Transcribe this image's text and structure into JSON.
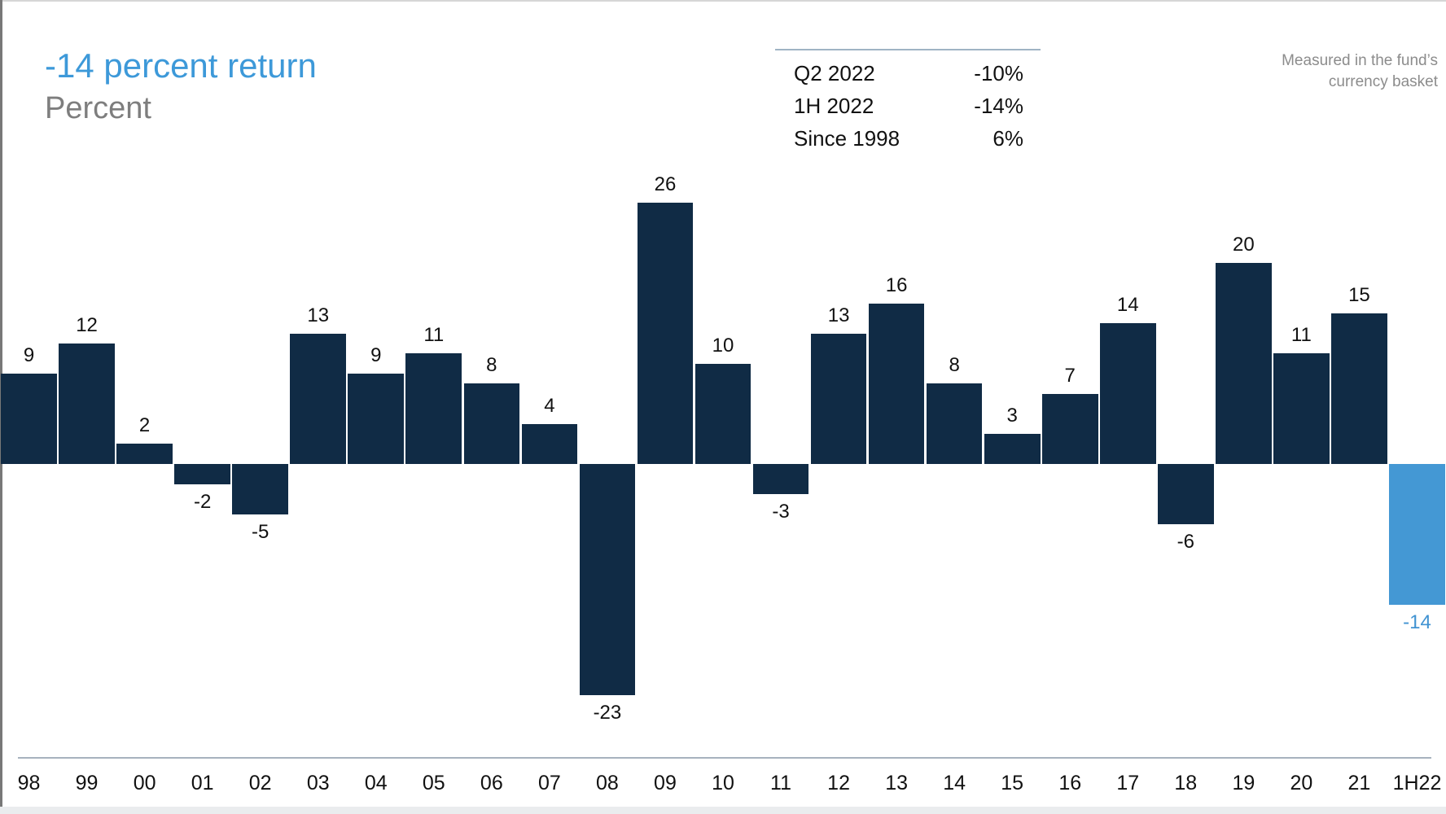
{
  "header": {
    "title": "-14 percent return",
    "subtitle": "Percent",
    "summary": {
      "rows": [
        {
          "label": "Q2 2022",
          "value": "-10%"
        },
        {
          "label": "1H 2022",
          "value": "-14%"
        },
        {
          "label": "Since 1998",
          "value": "6%"
        }
      ]
    },
    "note": {
      "line1": "Measured in the fund’s",
      "line2": "currency basket"
    }
  },
  "colors": {
    "title_blue": "#3d99d9",
    "subtitle_gray": "#7e7e7e",
    "note_gray": "#8c8c8c"
  },
  "chart_data": {
    "type": "bar",
    "title": "-14 percent return",
    "ylabel": "Percent",
    "categories": [
      "98",
      "99",
      "00",
      "01",
      "02",
      "03",
      "04",
      "05",
      "06",
      "07",
      "08",
      "09",
      "10",
      "11",
      "12",
      "13",
      "14",
      "15",
      "16",
      "17",
      "18",
      "19",
      "20",
      "21",
      "1H22"
    ],
    "values": [
      9,
      12,
      2,
      -2,
      -5,
      13,
      9,
      11,
      8,
      4,
      -23,
      26,
      10,
      -3,
      13,
      16,
      8,
      3,
      7,
      14,
      -6,
      20,
      11,
      15,
      -14
    ],
    "ylim": [
      -30,
      30
    ],
    "grid": false,
    "legend": "none",
    "data_labels": true,
    "highlight_index": 24,
    "colors": {
      "bar": "#102b45",
      "highlight_bar": "#4498d4",
      "highlight_label": "#4193d2",
      "label": "#111111",
      "axis_line": "#a7b2be"
    }
  }
}
